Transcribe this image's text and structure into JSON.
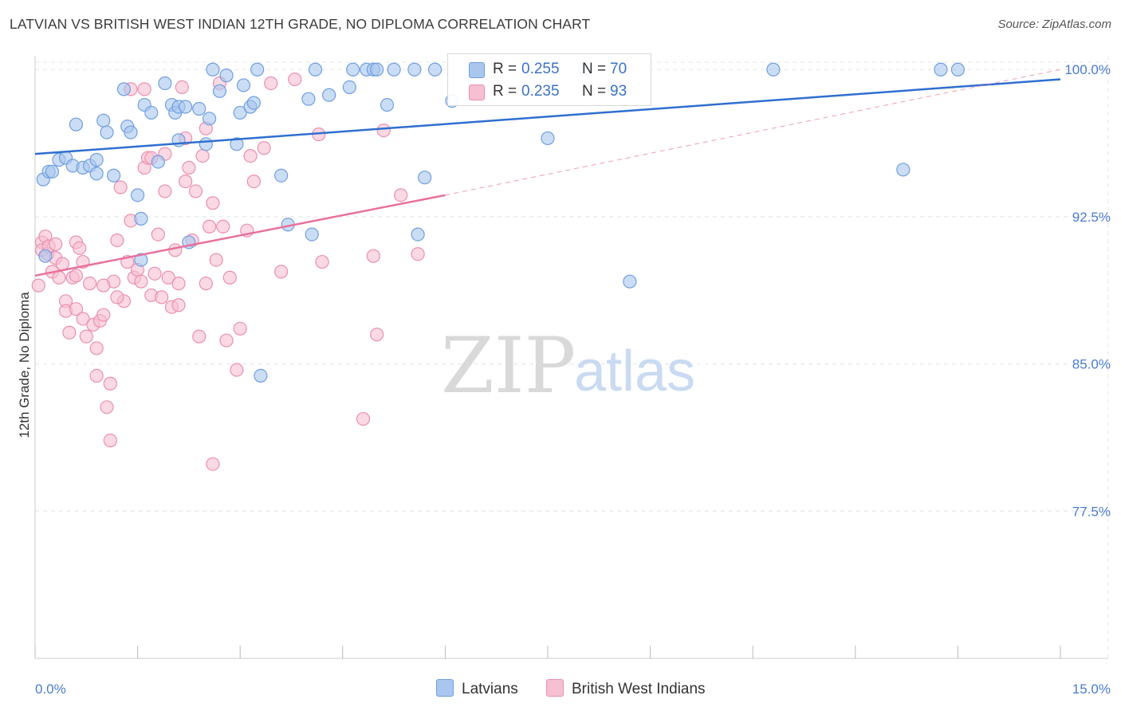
{
  "title": "LATVIAN VS BRITISH WEST INDIAN 12TH GRADE, NO DIPLOMA CORRELATION CHART",
  "source": "Source: ZipAtlas.com",
  "watermark": {
    "zip": "ZIP",
    "atlas": "atlas"
  },
  "legend_top": {
    "latvian": {
      "r_label": "R =",
      "r_value": "0.255",
      "n_label": "N =",
      "n_value": "70"
    },
    "bwi": {
      "r_label": "R =",
      "r_value": "0.235",
      "n_label": "N =",
      "n_value": "93"
    }
  },
  "legend_bottom": {
    "latvian": "Latvians",
    "bwi": "British West Indians"
  },
  "colors": {
    "latvian_fill": "#a9c6ee",
    "latvian_stroke": "#6f9fe0",
    "latvian_line": "#2f6fd0",
    "bwi_fill": "#f6bfd2",
    "bwi_stroke": "#eb8fb0",
    "bwi_line": "#e8709c",
    "tick_text": "#4a7ccf",
    "grid": "#e4e4e4"
  },
  "chart_data": {
    "type": "scatter",
    "title": "LATVIAN VS BRITISH WEST INDIAN 12TH GRADE, NO DIPLOMA CORRELATION CHART",
    "xlabel": "",
    "ylabel": "12th Grade, No Diploma",
    "xlim": [
      0,
      15
    ],
    "ylim": [
      70.0,
      100.7
    ],
    "x_tick_labels": [
      "0.0%",
      "15.0%"
    ],
    "y_ticks": [
      77.5,
      85.0,
      92.5,
      100.0
    ],
    "y_tick_labels": [
      "77.5%",
      "85.0%",
      "92.5%",
      "100.0%"
    ],
    "grid": true,
    "legend_position": "top-center",
    "series": [
      {
        "name": "Latvians",
        "R": 0.255,
        "N": 70,
        "trend": {
          "x": [
            0.0,
            15.0
          ],
          "y": [
            95.7,
            99.5
          ]
        },
        "points": [
          [
            0.12,
            94.4
          ],
          [
            0.15,
            90.5
          ],
          [
            0.2,
            94.8
          ],
          [
            0.25,
            94.8
          ],
          [
            0.35,
            95.4
          ],
          [
            0.45,
            95.5
          ],
          [
            0.55,
            95.1
          ],
          [
            0.6,
            97.2
          ],
          [
            0.7,
            95.0
          ],
          [
            0.8,
            95.1
          ],
          [
            0.9,
            95.4
          ],
          [
            1.0,
            97.4
          ],
          [
            1.05,
            96.8
          ],
          [
            1.15,
            94.6
          ],
          [
            1.3,
            99.0
          ],
          [
            1.35,
            97.1
          ],
          [
            1.4,
            96.8
          ],
          [
            1.5,
            93.6
          ],
          [
            1.55,
            92.4
          ],
          [
            1.6,
            98.2
          ],
          [
            1.7,
            97.8
          ],
          [
            1.8,
            95.3
          ],
          [
            1.9,
            99.3
          ],
          [
            2.0,
            98.2
          ],
          [
            2.05,
            97.8
          ],
          [
            2.1,
            98.1
          ],
          [
            2.2,
            98.1
          ],
          [
            2.25,
            91.2
          ],
          [
            2.4,
            98.0
          ],
          [
            2.5,
            96.2
          ],
          [
            2.55,
            97.5
          ],
          [
            2.6,
            100.0
          ],
          [
            2.7,
            98.9
          ],
          [
            2.8,
            99.7
          ],
          [
            2.95,
            96.2
          ],
          [
            3.0,
            97.8
          ],
          [
            3.05,
            99.2
          ],
          [
            3.15,
            98.1
          ],
          [
            3.2,
            98.3
          ],
          [
            3.3,
            84.4
          ],
          [
            3.6,
            94.6
          ],
          [
            3.7,
            92.1
          ],
          [
            4.0,
            98.5
          ],
          [
            4.05,
            91.6
          ],
          [
            4.1,
            100.0
          ],
          [
            4.3,
            98.7
          ],
          [
            4.6,
            99.1
          ],
          [
            4.65,
            100.0
          ],
          [
            4.85,
            100.0
          ],
          [
            4.95,
            100.0
          ],
          [
            5.0,
            100.0
          ],
          [
            5.15,
            98.2
          ],
          [
            5.25,
            100.0
          ],
          [
            5.55,
            100.0
          ],
          [
            5.6,
            91.6
          ],
          [
            5.7,
            94.5
          ],
          [
            5.85,
            100.0
          ],
          [
            6.1,
            98.4
          ],
          [
            7.5,
            96.5
          ],
          [
            8.05,
            100.0
          ],
          [
            8.45,
            99.1
          ],
          [
            8.7,
            89.2
          ],
          [
            10.8,
            100.0
          ],
          [
            12.7,
            94.9
          ],
          [
            13.25,
            100.0
          ],
          [
            13.5,
            100.0
          ],
          [
            1.55,
            90.3
          ],
          [
            2.1,
            96.4
          ],
          [
            3.25,
            100.0
          ],
          [
            0.9,
            94.7
          ]
        ]
      },
      {
        "name": "British West Indians",
        "R": 0.235,
        "N": 93,
        "trend": {
          "x": [
            0.0,
            6.0
          ],
          "y": [
            89.5,
            93.6
          ]
        },
        "trend_extension": {
          "x": [
            6.0,
            15.0
          ],
          "y": [
            93.6,
            100.0
          ]
        },
        "points": [
          [
            0.05,
            89.0
          ],
          [
            0.1,
            91.2
          ],
          [
            0.1,
            90.8
          ],
          [
            0.15,
            91.5
          ],
          [
            0.18,
            90.6
          ],
          [
            0.2,
            91.0
          ],
          [
            0.25,
            89.7
          ],
          [
            0.3,
            90.4
          ],
          [
            0.35,
            89.4
          ],
          [
            0.4,
            90.1
          ],
          [
            0.45,
            88.2
          ],
          [
            0.45,
            87.7
          ],
          [
            0.5,
            86.6
          ],
          [
            0.55,
            89.4
          ],
          [
            0.6,
            87.8
          ],
          [
            0.6,
            91.2
          ],
          [
            0.65,
            90.9
          ],
          [
            0.7,
            87.3
          ],
          [
            0.75,
            86.4
          ],
          [
            0.8,
            89.1
          ],
          [
            0.85,
            87.0
          ],
          [
            0.9,
            85.8
          ],
          [
            0.9,
            84.4
          ],
          [
            0.95,
            87.2
          ],
          [
            1.0,
            87.5
          ],
          [
            1.05,
            82.8
          ],
          [
            1.1,
            81.1
          ],
          [
            1.1,
            84.0
          ],
          [
            1.15,
            89.2
          ],
          [
            1.2,
            91.3
          ],
          [
            1.25,
            94.0
          ],
          [
            1.3,
            88.2
          ],
          [
            1.35,
            90.2
          ],
          [
            1.4,
            92.3
          ],
          [
            1.45,
            89.4
          ],
          [
            1.5,
            89.8
          ],
          [
            1.55,
            89.2
          ],
          [
            1.6,
            95.0
          ],
          [
            1.6,
            99.0
          ],
          [
            1.65,
            95.5
          ],
          [
            1.7,
            95.5
          ],
          [
            1.7,
            88.5
          ],
          [
            1.75,
            89.6
          ],
          [
            1.8,
            91.6
          ],
          [
            1.85,
            88.4
          ],
          [
            1.9,
            93.8
          ],
          [
            1.95,
            89.4
          ],
          [
            2.0,
            87.9
          ],
          [
            2.05,
            90.8
          ],
          [
            2.1,
            88.0
          ],
          [
            2.15,
            99.1
          ],
          [
            2.2,
            96.5
          ],
          [
            2.25,
            95.0
          ],
          [
            2.3,
            91.3
          ],
          [
            2.35,
            93.8
          ],
          [
            2.4,
            86.4
          ],
          [
            2.45,
            95.6
          ],
          [
            2.5,
            97.0
          ],
          [
            2.5,
            89.1
          ],
          [
            2.55,
            92.0
          ],
          [
            2.6,
            93.2
          ],
          [
            2.65,
            90.3
          ],
          [
            2.7,
            99.3
          ],
          [
            2.75,
            92.0
          ],
          [
            2.8,
            86.2
          ],
          [
            2.85,
            89.4
          ],
          [
            2.95,
            84.7
          ],
          [
            3.0,
            86.8
          ],
          [
            3.1,
            91.8
          ],
          [
            3.15,
            95.6
          ],
          [
            3.2,
            94.3
          ],
          [
            3.35,
            96.0
          ],
          [
            3.45,
            99.3
          ],
          [
            3.6,
            89.7
          ],
          [
            3.8,
            99.5
          ],
          [
            4.15,
            96.7
          ],
          [
            4.2,
            90.2
          ],
          [
            4.95,
            90.5
          ],
          [
            5.0,
            86.5
          ],
          [
            5.1,
            96.9
          ],
          [
            5.35,
            93.6
          ],
          [
            5.6,
            90.6
          ],
          [
            0.3,
            91.1
          ],
          [
            0.7,
            90.2
          ],
          [
            1.0,
            89.0
          ],
          [
            1.4,
            99.0
          ],
          [
            1.9,
            95.7
          ],
          [
            2.2,
            94.3
          ],
          [
            0.6,
            89.5
          ],
          [
            2.1,
            89.1
          ],
          [
            4.8,
            82.2
          ],
          [
            2.6,
            79.9
          ],
          [
            1.2,
            88.4
          ]
        ]
      }
    ]
  }
}
